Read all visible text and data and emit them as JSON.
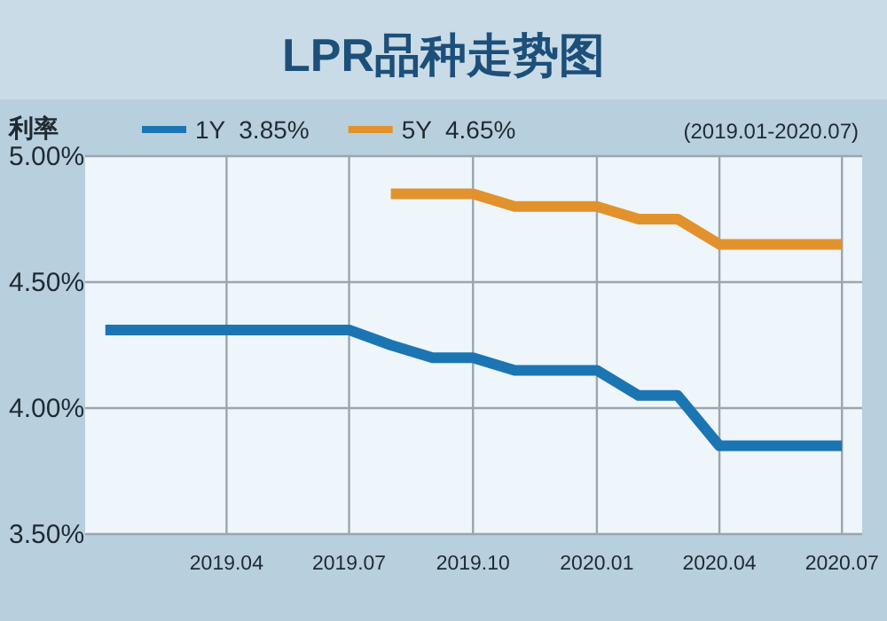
{
  "chart_data": {
    "type": "line",
    "title": "LPR品种走势图",
    "ylabel": "利率",
    "annotations": [
      "(2019.01-2020.07)"
    ],
    "x": [
      "2019-01",
      "2019-02",
      "2019-03",
      "2019-04",
      "2019-05",
      "2019-06",
      "2019-07",
      "2019-08",
      "2019-09",
      "2019-10",
      "2019-11",
      "2019-12",
      "2020-01",
      "2020-02",
      "2020-03",
      "2020-04",
      "2020-05",
      "2020-06",
      "2020-07"
    ],
    "series": [
      {
        "name": "1Y  3.85%",
        "color": "#1b75b3",
        "values": [
          4.31,
          4.31,
          4.31,
          4.31,
          4.31,
          4.31,
          4.31,
          4.25,
          4.2,
          4.2,
          4.15,
          4.15,
          4.15,
          4.05,
          4.05,
          3.85,
          3.85,
          3.85,
          3.85
        ]
      },
      {
        "name": "5Y  4.65%",
        "color": "#e2922c",
        "values": [
          null,
          null,
          null,
          null,
          null,
          null,
          null,
          4.85,
          4.85,
          4.85,
          4.8,
          4.8,
          4.8,
          4.75,
          4.75,
          4.65,
          4.65,
          4.65,
          4.65
        ]
      }
    ],
    "xlim": [
      "2018-12-17",
      "2020-07-16"
    ],
    "ylim": [
      3.5,
      5.0
    ],
    "xticks": [
      {
        "value": "2019-04",
        "label": "2019.04"
      },
      {
        "value": "2019-07",
        "label": "2019.07"
      },
      {
        "value": "2019-10",
        "label": "2019.10"
      },
      {
        "value": "2020-01",
        "label": "2020.01"
      },
      {
        "value": "2020-04",
        "label": "2020.04"
      },
      {
        "value": "2020-07",
        "label": "2020.07"
      }
    ],
    "yticks": [
      {
        "value": 3.5,
        "label": "3.50%"
      },
      {
        "value": 4.0,
        "label": "4.00%"
      },
      {
        "value": 4.5,
        "label": "4.50%"
      },
      {
        "value": 5.0,
        "label": "5.00%"
      }
    ],
    "grid": true,
    "legend": "top"
  }
}
